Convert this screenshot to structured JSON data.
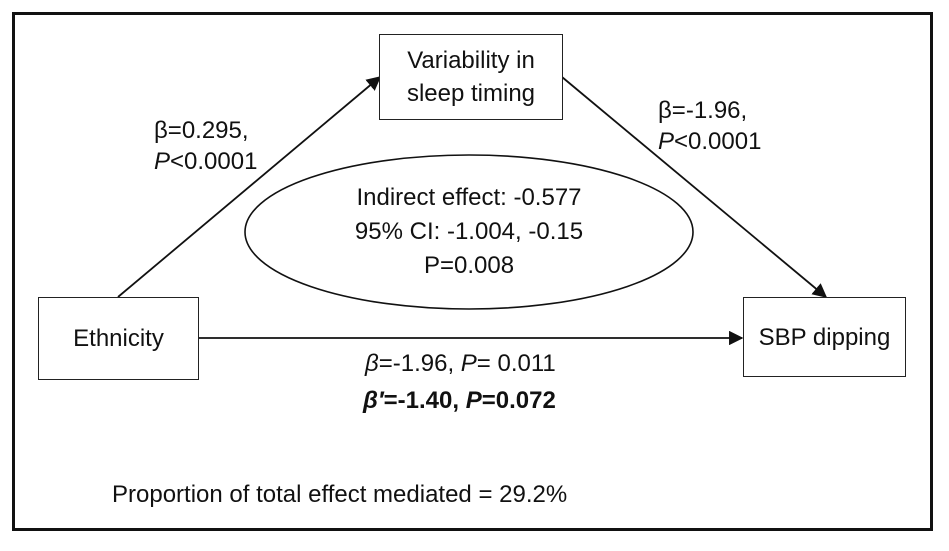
{
  "nodes": {
    "mediator": {
      "line1": "Variability in",
      "line2": "sleep timing"
    },
    "exposure": {
      "label": "Ethnicity"
    },
    "outcome": {
      "label": "SBP dipping"
    }
  },
  "paths": {
    "a": {
      "beta": "β=0.295,",
      "p_symbol": "P",
      "p_value": "<0.0001"
    },
    "b": {
      "beta": "β=-1.96,",
      "p_symbol": "P",
      "p_value": "<0.0001"
    },
    "c": {
      "beta_symbol": "β",
      "beta_text": "=-1.96, ",
      "p_symbol": "P",
      "p_text": "= 0.011"
    },
    "c_prime": {
      "beta_symbol": "β′",
      "beta_text": "=-1.40, ",
      "p_symbol": "P",
      "p_text": "=0.072"
    }
  },
  "indirect": {
    "line1": "Indirect effect: -0.577",
    "line2": "95% CI: -1.004, -0.15",
    "line3": "P=0.008"
  },
  "footer": {
    "proportion": "Proportion of total effect mediated = 29.2%"
  }
}
